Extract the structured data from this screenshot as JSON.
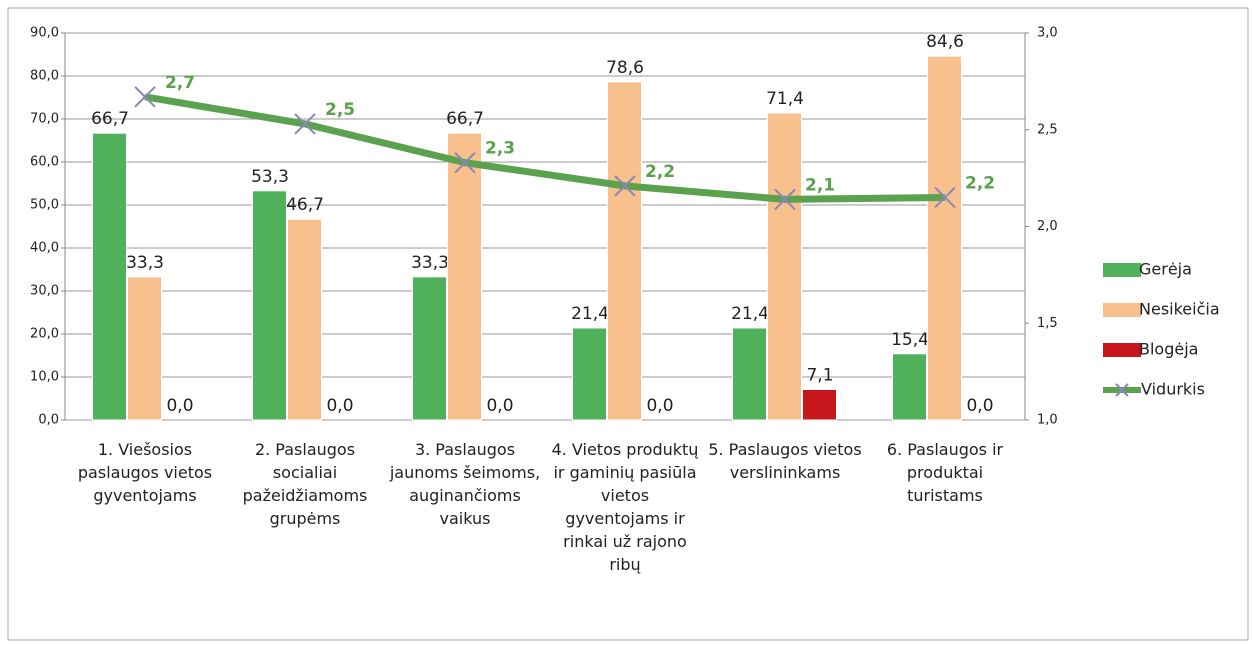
{
  "chart_data": {
    "type": "bar",
    "categories": [
      "1. Viešosios paslaugos vietos gyventojams",
      "2. Paslaugos socialiai pažeidžiamoms grupėms",
      "3. Paslaugos jaunoms šeimoms, auginančioms vaikus",
      "4. Vietos produktų ir gaminių pasiūla vietos gyventojams ir rinkai už rajono ribų",
      "5. Paslaugos vietos verslininkams",
      "6. Paslaugos ir produktai turistams"
    ],
    "series": [
      {
        "name": "Gerėja",
        "color": "#4fb25a",
        "values": [
          66.7,
          53.3,
          33.3,
          21.4,
          21.4,
          15.4
        ],
        "value_labels": [
          "66,7",
          "53,3",
          "33,3",
          "21,4",
          "21,4",
          "15,4"
        ]
      },
      {
        "name": "Nesikeičia",
        "color": "#f8c08c",
        "values": [
          33.3,
          46.7,
          66.7,
          78.6,
          71.4,
          84.6
        ],
        "value_labels": [
          "33,3",
          "46,7",
          "66,7",
          "78,6",
          "71,4",
          "84,6"
        ]
      },
      {
        "name": "Blogėja",
        "color": "#c8161d",
        "values": [
          0,
          0,
          0,
          0,
          7.1,
          0
        ],
        "value_labels": [
          "0,0",
          "0,0",
          "0,0",
          "0,0",
          "7,1",
          "0,0"
        ]
      },
      {
        "name": "Vidurkis",
        "type": "line",
        "axis": "y2",
        "color": "#5aa24e",
        "values": [
          2.67,
          2.53,
          2.33,
          2.21,
          2.14,
          2.15
        ],
        "value_labels": [
          "2,7",
          "2,5",
          "2,3",
          "2,2",
          "2,1",
          "2,2"
        ]
      }
    ],
    "ylim": [
      0,
      90
    ],
    "yticks": [
      {
        "value": 0,
        "label": "0,0"
      },
      {
        "value": 10,
        "label": "10,0"
      },
      {
        "value": 20,
        "label": "20,0"
      },
      {
        "value": 30,
        "label": "30,0"
      },
      {
        "value": 40,
        "label": "40,0"
      },
      {
        "value": 50,
        "label": "50,0"
      },
      {
        "value": 60,
        "label": "60,0"
      },
      {
        "value": 70,
        "label": "70,0"
      },
      {
        "value": 80,
        "label": "80,0"
      },
      {
        "value": 90,
        "label": "90,0"
      }
    ],
    "y2lim": [
      1,
      3
    ],
    "y2ticks": [
      {
        "value": 1,
        "label": "1,0"
      },
      {
        "value": 1.5,
        "label": "1,5"
      },
      {
        "value": 2,
        "label": "2,0"
      },
      {
        "value": 2.5,
        "label": "2,5"
      },
      {
        "value": 3,
        "label": "3,0"
      }
    ],
    "grid": true,
    "legend": "right"
  }
}
